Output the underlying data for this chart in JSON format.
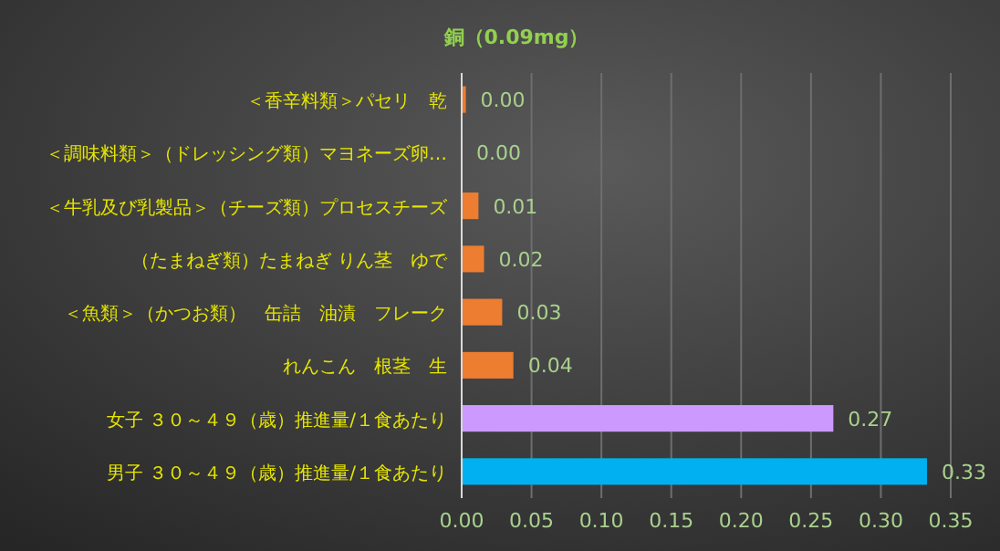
{
  "chart_data": {
    "type": "bar",
    "orientation": "horizontal",
    "title": "銅（0.09mg）",
    "categories": [
      "＜香辛料類＞パセリ　乾",
      "＜調味料類＞（ドレッシング類）マヨネーズ卵…",
      "＜牛乳及び乳製品＞（チーズ類）プロセスチーズ",
      "（たまねぎ類）たまねぎ りん茎　ゆで",
      "＜魚類＞（かつお類）　缶詰　油漬　フレーク",
      "れんこん　根茎　生",
      "女子 ３０～４９（歳）推進量/１食あたり",
      "男子 ３０～４９（歳）推進量/１食あたり"
    ],
    "values": [
      0.003,
      0.0,
      0.012,
      0.016,
      0.029,
      0.037,
      0.266,
      0.333
    ],
    "colors": [
      "#ed7d31",
      "#ed7d31",
      "#ed7d31",
      "#ed7d31",
      "#ed7d31",
      "#ed7d31",
      "#cc99ff",
      "#00b0f0"
    ],
    "value_labels": [
      "0.00",
      "0.00",
      "0.01",
      "0.02",
      "0.03",
      "0.04",
      "0.27",
      "0.33"
    ],
    "xlim": [
      0,
      0.35
    ],
    "xticks": [
      "0.00",
      {
        "value": 0.05,
        "label": "0.05"
      },
      {
        "value": 0.1,
        "label": "0.10"
      },
      {
        "value": 0.15,
        "label": "0.15"
      },
      {
        "value": 0.2,
        "label": "0.20"
      },
      {
        "value": 0.25,
        "label": "0.25"
      },
      {
        "value": 0.3,
        "label": "0.30"
      },
      {
        "value": 0.35,
        "label": "0.35"
      }
    ],
    "grid": "x"
  }
}
